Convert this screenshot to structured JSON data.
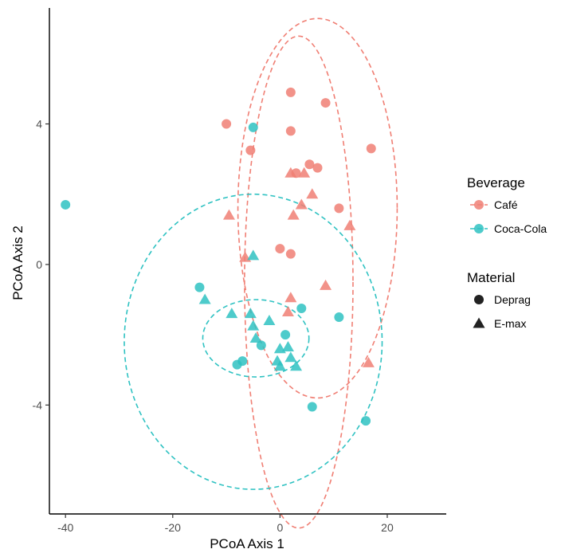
{
  "chart_data": {
    "type": "scatter",
    "xlabel": "PCoA Axis 1",
    "ylabel": "PCoA Axis 2",
    "xlim": [
      -43,
      31
    ],
    "ylim": [
      -7.1,
      7.3
    ],
    "xticks": [
      -40,
      -20,
      0,
      20
    ],
    "yticks": [
      -4,
      0,
      4
    ],
    "grid": false,
    "legend_position": "right",
    "legends": [
      {
        "title": "Beverage",
        "entries": [
          {
            "label": "Café",
            "color": "#F07F74"
          },
          {
            "label": "Coca-Cola",
            "color": "#2FC2C2"
          }
        ]
      },
      {
        "title": "Material",
        "entries": [
          {
            "label": "Deprag",
            "shape": "circle"
          },
          {
            "label": "E-max",
            "shape": "triangle"
          }
        ]
      }
    ],
    "series": [
      {
        "beverage": "Café",
        "material": "Deprag",
        "color": "#F07F74",
        "shape": "circle",
        "points": [
          [
            -10,
            4.0
          ],
          [
            2,
            4.9
          ],
          [
            8.5,
            4.6
          ],
          [
            2,
            3.8
          ],
          [
            -5.5,
            3.25
          ],
          [
            17,
            3.3
          ],
          [
            5.5,
            2.85
          ],
          [
            7,
            2.75
          ],
          [
            3,
            2.6
          ],
          [
            11,
            1.6
          ],
          [
            0,
            0.45
          ],
          [
            2,
            0.3
          ]
        ]
      },
      {
        "beverage": "Café",
        "material": "E-max",
        "color": "#F07F74",
        "shape": "triangle",
        "points": [
          [
            2,
            2.6
          ],
          [
            4.5,
            2.6
          ],
          [
            6,
            2.0
          ],
          [
            4,
            1.7
          ],
          [
            -9.5,
            1.4
          ],
          [
            2.5,
            1.4
          ],
          [
            13,
            1.1
          ],
          [
            -6.5,
            0.2
          ],
          [
            8.5,
            -0.6
          ],
          [
            2,
            -0.95
          ],
          [
            1.5,
            -1.35
          ],
          [
            16.5,
            -2.8
          ]
        ]
      },
      {
        "beverage": "Coca-Cola",
        "material": "Deprag",
        "color": "#2FC2C2",
        "shape": "circle",
        "points": [
          [
            -40,
            1.7
          ],
          [
            -5,
            3.9
          ],
          [
            -15,
            -0.65
          ],
          [
            4,
            -1.25
          ],
          [
            11,
            -1.5
          ],
          [
            1,
            -2.0
          ],
          [
            -3.5,
            -2.3
          ],
          [
            -8,
            -2.85
          ],
          [
            -7,
            -2.75
          ],
          [
            6,
            -4.05
          ],
          [
            16,
            -4.45
          ]
        ]
      },
      {
        "beverage": "Coca-Cola",
        "material": "E-max",
        "color": "#2FC2C2",
        "shape": "triangle",
        "points": [
          [
            -5,
            0.25
          ],
          [
            -14,
            -1.0
          ],
          [
            -9,
            -1.4
          ],
          [
            -5.5,
            -1.4
          ],
          [
            -5,
            -1.75
          ],
          [
            -2,
            -1.6
          ],
          [
            -4.5,
            -2.1
          ],
          [
            0,
            -2.4
          ],
          [
            1.5,
            -2.35
          ],
          [
            -0.5,
            -2.75
          ],
          [
            2,
            -2.65
          ],
          [
            0,
            -2.9
          ],
          [
            3,
            -2.9
          ]
        ]
      }
    ],
    "ellipses": [
      {
        "beverage": "Café",
        "color": "#F07F74",
        "style": "dashed",
        "cx": 3.5,
        "cy": -0.5,
        "rx": 14.3,
        "ry": 7.0,
        "rotation_deg": 0
      },
      {
        "beverage": "Café",
        "color": "#F07F74",
        "style": "dashed",
        "cx": 7.0,
        "cy": 1.6,
        "rx": 21.0,
        "ry": 5.4,
        "rotation_deg": 0
      },
      {
        "beverage": "Coca-Cola",
        "color": "#2FC2C2",
        "style": "dashed",
        "cx": -5.0,
        "cy": -2.2,
        "rx": 34.0,
        "ry": 4.2,
        "rotation_deg": 0
      },
      {
        "beverage": "Coca-Cola",
        "color": "#2FC2C2",
        "style": "dashed",
        "cx": -4.5,
        "cy": -2.1,
        "rx": 14.0,
        "ry": 1.1,
        "rotation_deg": 0
      }
    ]
  }
}
